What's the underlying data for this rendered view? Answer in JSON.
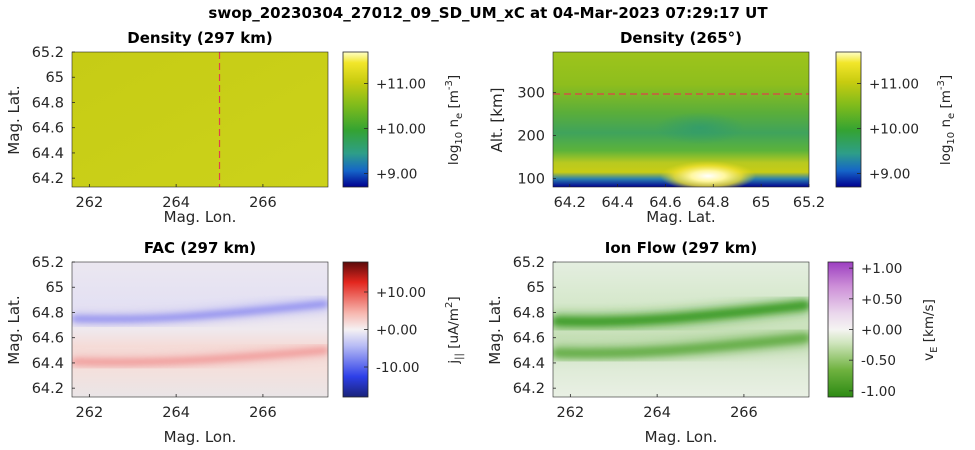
{
  "suptitle": "swop_20230304_27012_09_SD_UM_xC at 04-Mar-2023 07:29:17 UT",
  "chart_data": [
    {
      "type": "heatmap",
      "title": "Density (297 km)",
      "xlabel": "Mag. Lon.",
      "ylabel": "Mag. Lat.",
      "xlim": [
        261.6,
        267.5
      ],
      "ylim": [
        64.13,
        65.2
      ],
      "xticks": [
        "262",
        "264",
        "266"
      ],
      "xtick_values": [
        262,
        264,
        266
      ],
      "yticks": [
        "64.2",
        "64.4",
        "64.6",
        "64.8",
        "65",
        "65.2"
      ],
      "ytick_values": [
        64.2,
        64.4,
        64.6,
        64.8,
        65.0,
        65.2
      ],
      "marker_line": {
        "orientation": "vertical",
        "value": 265,
        "color": "#e0404a",
        "style": "dashed"
      },
      "colorbar": {
        "label": "log₁₀ nₑ [m⁻³]",
        "ticks": [
          "+9.00",
          "+10.00",
          "+11.00"
        ],
        "tick_values": [
          9,
          10,
          11
        ],
        "range": [
          8.7,
          11.7
        ],
        "colormap": "blue-green-yellow"
      },
      "description_value": 11.0
    },
    {
      "type": "heatmap",
      "title": "Density (265°)",
      "xlabel": "Mag. Lat.",
      "ylabel": "Alt. [km]",
      "xlim": [
        64.13,
        65.2
      ],
      "ylim": [
        80,
        395
      ],
      "xticks": [
        "64.2",
        "64.4",
        "64.6",
        "64.8",
        "65",
        "65.2"
      ],
      "xtick_values": [
        64.2,
        64.4,
        64.6,
        64.8,
        65.0,
        65.2
      ],
      "yticks": [
        "100",
        "200",
        "300"
      ],
      "ytick_values": [
        100,
        200,
        300
      ],
      "marker_line": {
        "orientation": "horizontal",
        "value": 297,
        "color": "#e0404a",
        "style": "dashed"
      },
      "colorbar": {
        "label": "log₁₀ nₑ [m⁻³]",
        "ticks": [
          "+9.00",
          "+10.00",
          "+11.00"
        ],
        "tick_values": [
          9,
          10,
          11
        ],
        "range": [
          8.7,
          11.7
        ],
        "colormap": "blue-green-yellow"
      },
      "peak": {
        "lat": 64.8,
        "alt": 100,
        "value": 11.7
      }
    },
    {
      "type": "heatmap",
      "title": "FAC (297 km)",
      "xlabel": "Mag. Lon.",
      "ylabel": "Mag. Lat.",
      "xlim": [
        261.6,
        267.5
      ],
      "ylim": [
        64.13,
        65.2
      ],
      "xticks": [
        "262",
        "264",
        "266"
      ],
      "xtick_values": [
        262,
        264,
        266
      ],
      "yticks": [
        "64.2",
        "64.4",
        "64.6",
        "64.8",
        "65",
        "65.2"
      ],
      "ytick_values": [
        64.2,
        64.4,
        64.6,
        64.8,
        65.0,
        65.2
      ],
      "colorbar": {
        "label": "j∥ [uA/m²]",
        "ticks": [
          "-10.00",
          "+0.00",
          "+10.00"
        ],
        "tick_values": [
          -10,
          0,
          10
        ],
        "range": [
          -18,
          18
        ],
        "colormap": "blue-white-red"
      },
      "bands": [
        {
          "lat_at_262": 64.75,
          "lat_at_267.5": 64.87,
          "value": -5
        },
        {
          "lat_at_262": 64.41,
          "lat_at_267.5": 64.5,
          "value": 5
        }
      ]
    },
    {
      "type": "heatmap",
      "title": "Ion Flow (297 km)",
      "xlabel": "Mag. Lon.",
      "ylabel": "Mag. Lat.",
      "xlim": [
        261.6,
        267.5
      ],
      "ylim": [
        64.13,
        65.2
      ],
      "xticks": [
        "262",
        "264",
        "266"
      ],
      "xtick_values": [
        262,
        264,
        266
      ],
      "yticks": [
        "64.2",
        "64.4",
        "64.6",
        "64.8",
        "65",
        "65.2"
      ],
      "ytick_values": [
        64.2,
        64.4,
        64.6,
        64.8,
        65.0,
        65.2
      ],
      "colorbar": {
        "label": "vₑ [km/s]",
        "ticks": [
          "+1.00",
          "+0.50",
          "+0.00",
          "-0.50",
          "-1.00"
        ],
        "tick_values": [
          1.0,
          0.5,
          0.0,
          -0.5,
          -1.0
        ],
        "range": [
          -1.1,
          1.1
        ],
        "colormap": "green-white-purple"
      },
      "bands": [
        {
          "lat_at_262": 64.73,
          "lat_at_267.5": 64.86,
          "value": -0.7
        },
        {
          "lat_at_262": 64.48,
          "lat_at_267.5": 64.6,
          "value": -0.45
        }
      ]
    }
  ]
}
